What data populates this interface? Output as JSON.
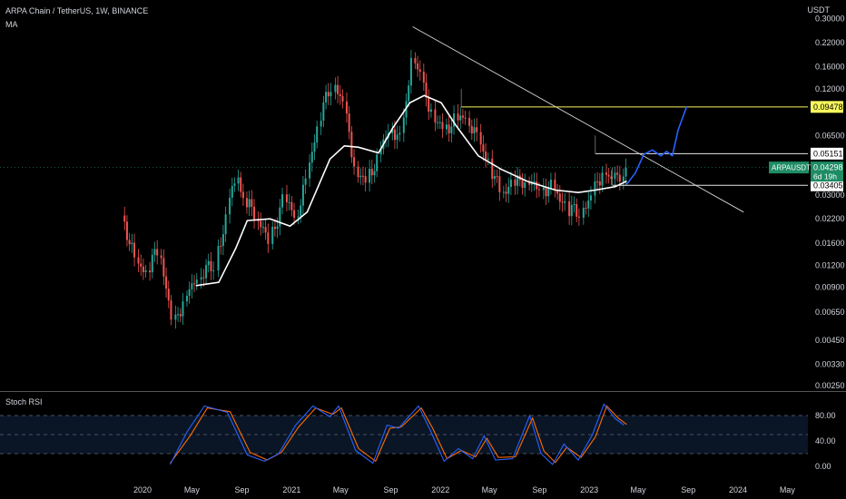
{
  "header": {
    "symbol_line": "ARPA Chain / TetherUS, 1W, BINANCE",
    "indicator": "MA",
    "currency": "USDT",
    "subpanel_title": "Stoch RSI"
  },
  "colors": {
    "background": "#000000",
    "up_candle": "#26a69a",
    "down_candle": "#ef5350",
    "ma_line": "#ffffff",
    "projection": "#2962ff",
    "level_yellow": "#f7f75e",
    "rsi_k": "#2962ff",
    "rsi_d": "#ff6d00",
    "label_green": "#1e8c64"
  },
  "price_axis": {
    "ticks": [
      "0.30000",
      "0.22000",
      "0.16000",
      "0.12000",
      "0.06500",
      "0.03000",
      "0.02200",
      "0.01600",
      "0.01200",
      "0.00900",
      "0.00650",
      "0.00450",
      "0.00330",
      "0.00250"
    ],
    "tick_values": [
      0.3,
      0.22,
      0.16,
      0.12,
      0.065,
      0.03,
      0.022,
      0.016,
      0.012,
      0.009,
      0.0065,
      0.0045,
      0.0033,
      0.0025
    ],
    "scale": "log",
    "range": [
      0.00235,
      0.34
    ]
  },
  "price_labels": {
    "level_high": "0.09478",
    "level_mid": "0.05151",
    "ticker": "ARPAUSDT",
    "last": "0.04298",
    "countdown": "6d 19h",
    "level_low": "0.03405"
  },
  "time_axis": {
    "labels": [
      "2020",
      "May",
      "Sep",
      "2021",
      "May",
      "Sep",
      "2022",
      "May",
      "Sep",
      "2023",
      "May",
      "Sep",
      "2024",
      "May"
    ],
    "dates": [
      "2020-01-01",
      "2020-05-01",
      "2020-09-01",
      "2021-01-01",
      "2021-05-01",
      "2021-09-01",
      "2022-01-01",
      "2022-05-01",
      "2022-09-01",
      "2023-01-01",
      "2023-05-01",
      "2023-09-01",
      "2024-01-01",
      "2024-05-01"
    ]
  },
  "rsi_axis": {
    "ticks": [
      "80.00",
      "40.00",
      "0.00"
    ],
    "tick_values": [
      80,
      40,
      0
    ],
    "bands": [
      20,
      50,
      80
    ]
  },
  "chart_data": {
    "type": "candlestick",
    "scale": "log",
    "close_anchors": [
      [
        "2019-11-18",
        0.0205
      ],
      [
        "2019-12-16",
        0.012
      ],
      [
        "2020-01-13",
        0.011
      ],
      [
        "2020-02-10",
        0.0155
      ],
      [
        "2020-03-16",
        0.0052
      ],
      [
        "2020-04-13",
        0.008
      ],
      [
        "2020-05-18",
        0.0105
      ],
      [
        "2020-06-29",
        0.0125
      ],
      [
        "2020-07-27",
        0.024
      ],
      [
        "2020-08-17",
        0.04
      ],
      [
        "2020-09-07",
        0.028
      ],
      [
        "2020-10-05",
        0.023
      ],
      [
        "2020-11-09",
        0.016
      ],
      [
        "2020-12-14",
        0.03
      ],
      [
        "2021-01-11",
        0.022
      ],
      [
        "2021-02-08",
        0.038
      ],
      [
        "2021-03-08",
        0.08
      ],
      [
        "2021-04-12",
        0.135
      ],
      [
        "2021-05-10",
        0.095
      ],
      [
        "2021-06-07",
        0.04
      ],
      [
        "2021-07-05",
        0.036
      ],
      [
        "2021-08-02",
        0.05
      ],
      [
        "2021-08-30",
        0.075
      ],
      [
        "2021-09-27",
        0.06
      ],
      [
        "2021-10-25",
        0.21
      ],
      [
        "2021-11-15",
        0.13
      ],
      [
        "2021-12-13",
        0.085
      ],
      [
        "2022-01-10",
        0.07
      ],
      [
        "2022-02-07",
        0.08
      ],
      [
        "2022-03-07",
        0.085
      ],
      [
        "2022-04-04",
        0.06
      ],
      [
        "2022-05-02",
        0.045
      ],
      [
        "2022-05-30",
        0.03
      ],
      [
        "2022-06-27",
        0.035
      ],
      [
        "2022-08-01",
        0.036
      ],
      [
        "2022-09-05",
        0.033
      ],
      [
        "2022-10-03",
        0.033
      ],
      [
        "2022-11-07",
        0.025
      ],
      [
        "2022-12-12",
        0.024
      ],
      [
        "2023-01-09",
        0.03
      ],
      [
        "2023-02-06",
        0.043
      ],
      [
        "2023-02-27",
        0.035
      ],
      [
        "2023-03-20",
        0.04
      ],
      [
        "2023-04-03",
        0.043
      ]
    ],
    "moving_average": [
      [
        "2020-05-11",
        0.0092
      ],
      [
        "2020-07-06",
        0.0096
      ],
      [
        "2020-08-17",
        0.015
      ],
      [
        "2020-09-14",
        0.0215
      ],
      [
        "2020-11-09",
        0.022
      ],
      [
        "2020-12-28",
        0.02
      ],
      [
        "2021-02-08",
        0.024
      ],
      [
        "2021-04-05",
        0.048
      ],
      [
        "2021-05-10",
        0.057
      ],
      [
        "2021-06-14",
        0.056
      ],
      [
        "2021-08-02",
        0.052
      ],
      [
        "2021-09-06",
        0.072
      ],
      [
        "2021-10-18",
        0.1
      ],
      [
        "2021-11-22",
        0.11
      ],
      [
        "2022-01-03",
        0.1
      ],
      [
        "2022-02-07",
        0.075
      ],
      [
        "2022-04-04",
        0.05
      ],
      [
        "2022-05-30",
        0.042
      ],
      [
        "2022-08-01",
        0.036
      ],
      [
        "2022-10-10",
        0.032
      ],
      [
        "2022-12-05",
        0.031
      ],
      [
        "2023-01-16",
        0.032
      ],
      [
        "2023-03-06",
        0.0335
      ],
      [
        "2023-04-03",
        0.036
      ]
    ],
    "trendline": [
      [
        "2021-10-25",
        0.27
      ],
      [
        "2024-01-15",
        0.024
      ]
    ],
    "horizontal_levels": [
      {
        "label": "0.09478",
        "from": "2022-02-21",
        "to": "2024-05-20"
      },
      {
        "label": "0.05151",
        "from": "2023-01-16",
        "to": "2024-05-20"
      },
      {
        "label": "0.03405",
        "from": "2023-02-27",
        "to": "2024-05-20"
      }
    ],
    "projection_path": [
      [
        "2023-04-03",
        0.0345
      ],
      [
        "2023-04-24",
        0.04
      ],
      [
        "2023-05-15",
        0.051
      ],
      [
        "2023-06-05",
        0.054
      ],
      [
        "2023-06-26",
        0.05
      ],
      [
        "2023-07-10",
        0.053
      ],
      [
        "2023-07-24",
        0.05
      ],
      [
        "2023-08-07",
        0.07
      ],
      [
        "2023-08-28",
        0.095
      ]
    ],
    "stoch_rsi": {
      "k": [
        [
          "2020-03-09",
          3
        ],
        [
          "2020-04-20",
          55
        ],
        [
          "2020-06-01",
          95
        ],
        [
          "2020-07-27",
          85
        ],
        [
          "2020-09-14",
          18
        ],
        [
          "2020-10-26",
          8
        ],
        [
          "2020-11-30",
          20
        ],
        [
          "2021-01-11",
          65
        ],
        [
          "2021-02-22",
          95
        ],
        [
          "2021-04-05",
          78
        ],
        [
          "2021-04-26",
          95
        ],
        [
          "2021-06-07",
          25
        ],
        [
          "2021-07-19",
          5
        ],
        [
          "2021-08-23",
          65
        ],
        [
          "2021-09-20",
          60
        ],
        [
          "2021-11-08",
          95
        ],
        [
          "2021-12-06",
          58
        ],
        [
          "2022-01-10",
          8
        ],
        [
          "2022-02-14",
          28
        ],
        [
          "2022-03-21",
          12
        ],
        [
          "2022-04-18",
          48
        ],
        [
          "2022-05-16",
          10
        ],
        [
          "2022-06-27",
          12
        ],
        [
          "2022-08-08",
          80
        ],
        [
          "2022-09-05",
          20
        ],
        [
          "2022-10-03",
          3
        ],
        [
          "2022-10-31",
          35
        ],
        [
          "2022-12-05",
          10
        ],
        [
          "2023-01-09",
          50
        ],
        [
          "2023-02-06",
          98
        ],
        [
          "2023-03-06",
          75
        ],
        [
          "2023-03-27",
          65
        ]
      ],
      "d": [
        [
          "2020-03-09",
          5
        ],
        [
          "2020-04-27",
          48
        ],
        [
          "2020-06-08",
          92
        ],
        [
          "2020-08-03",
          86
        ],
        [
          "2020-09-21",
          22
        ],
        [
          "2020-11-02",
          10
        ],
        [
          "2020-12-07",
          22
        ],
        [
          "2021-01-18",
          62
        ],
        [
          "2021-03-01",
          92
        ],
        [
          "2021-04-12",
          82
        ],
        [
          "2021-05-03",
          92
        ],
        [
          "2021-06-14",
          28
        ],
        [
          "2021-07-26",
          8
        ],
        [
          "2021-08-30",
          60
        ],
        [
          "2021-09-27",
          62
        ],
        [
          "2021-11-15",
          92
        ],
        [
          "2021-12-13",
          60
        ],
        [
          "2022-01-17",
          12
        ],
        [
          "2022-02-21",
          25
        ],
        [
          "2022-03-28",
          15
        ],
        [
          "2022-04-25",
          44
        ],
        [
          "2022-05-23",
          14
        ],
        [
          "2022-07-04",
          15
        ],
        [
          "2022-08-15",
          76
        ],
        [
          "2022-09-12",
          24
        ],
        [
          "2022-10-10",
          6
        ],
        [
          "2022-11-07",
          30
        ],
        [
          "2022-12-12",
          14
        ],
        [
          "2023-01-16",
          46
        ],
        [
          "2023-02-13",
          95
        ],
        [
          "2023-03-13",
          76
        ],
        [
          "2023-04-03",
          66
        ]
      ]
    }
  }
}
